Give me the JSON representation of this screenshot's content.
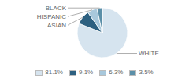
{
  "chart_data": {
    "type": "pie",
    "categories": [
      "WHITE",
      "ASIAN",
      "HISPANIC",
      "BLACK"
    ],
    "values": [
      81.1,
      9.1,
      6.3,
      3.5
    ],
    "value_labels": [
      "81.1%",
      "9.1%",
      "6.3%",
      "3.5%"
    ],
    "colors": [
      "#d6e4ef",
      "#2d6080",
      "#a8c8dc",
      "#5b8fa8"
    ],
    "legend": "bottom"
  }
}
